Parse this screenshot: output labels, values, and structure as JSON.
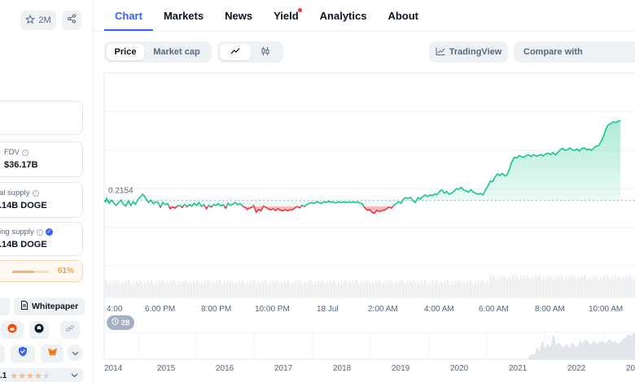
{
  "left": {
    "watch_count": "2M",
    "fdv": {
      "label": "FDV",
      "value": "$36.17B"
    },
    "total_supply": {
      "label": "al supply",
      "value": ".14B DOGE"
    },
    "circulating_supply": {
      "label": "ing supply",
      "value": ".14B DOGE"
    },
    "supply_progress": {
      "percent_label": "61%",
      "fraction": 0.61
    },
    "links": {
      "website_fragment": "e",
      "whitepaper": "Whitepaper"
    },
    "rating": {
      "value_fragment": ".1",
      "stars_filled": 4,
      "stars_total": 5
    }
  },
  "tabs": [
    {
      "label": "Chart",
      "active": true
    },
    {
      "label": "Markets"
    },
    {
      "label": "News"
    },
    {
      "label": "Yield",
      "badge": true
    },
    {
      "label": "Analytics"
    },
    {
      "label": "About"
    }
  ],
  "toolbar": {
    "price": "Price",
    "market_cap": "Market cap",
    "tradingview": "TradingView",
    "compare_placeholder": "Compare with"
  },
  "chart_data": {
    "type": "line",
    "baseline_label": "0.2154",
    "baseline": 0.2154,
    "below_color": "#ea3943",
    "above_color": "#16c784",
    "x_tick_labels": [
      "4:00",
      "6:00 PM",
      "8:00 PM",
      "10:00 PM",
      "18 Jul",
      "2:00 AM",
      "4:00 AM",
      "6:00 AM",
      "8:00 AM",
      "10:00 AM"
    ],
    "ylim": [
      0.195,
      0.252
    ],
    "points": [
      [
        0,
        0.2154
      ],
      [
        2,
        0.215
      ],
      [
        3,
        0.216
      ],
      [
        6,
        0.2146
      ],
      [
        9,
        0.2155
      ],
      [
        12,
        0.2146
      ],
      [
        15,
        0.214
      ],
      [
        18,
        0.2148
      ],
      [
        21,
        0.2155
      ],
      [
        24,
        0.2142
      ],
      [
        27,
        0.2138
      ],
      [
        30,
        0.2152
      ],
      [
        33,
        0.214
      ],
      [
        36,
        0.215
      ],
      [
        39,
        0.2143
      ],
      [
        42,
        0.2157
      ],
      [
        45,
        0.2165
      ],
      [
        48,
        0.2172
      ],
      [
        52,
        0.216
      ],
      [
        55,
        0.2148
      ],
      [
        58,
        0.2155
      ],
      [
        61,
        0.2145
      ],
      [
        64,
        0.215
      ],
      [
        67,
        0.2148
      ],
      [
        70,
        0.2135
      ],
      [
        73,
        0.2148
      ],
      [
        76,
        0.2142
      ],
      [
        79,
        0.2145
      ],
      [
        82,
        0.213
      ],
      [
        85,
        0.2136
      ],
      [
        88,
        0.2132
      ],
      [
        91,
        0.2138
      ],
      [
        94,
        0.214
      ],
      [
        97,
        0.2134
      ],
      [
        100,
        0.2143
      ],
      [
        103,
        0.2136
      ],
      [
        106,
        0.2142
      ],
      [
        109,
        0.2138
      ],
      [
        112,
        0.2146
      ],
      [
        115,
        0.214
      ],
      [
        118,
        0.2148
      ],
      [
        121,
        0.2137
      ],
      [
        124,
        0.2142
      ],
      [
        127,
        0.213
      ],
      [
        130,
        0.214
      ],
      [
        133,
        0.2135
      ],
      [
        136,
        0.2142
      ],
      [
        139,
        0.214
      ],
      [
        142,
        0.2145
      ],
      [
        145,
        0.2138
      ],
      [
        148,
        0.2142
      ],
      [
        151,
        0.2132
      ],
      [
        154,
        0.2146
      ],
      [
        157,
        0.214
      ],
      [
        160,
        0.2144
      ],
      [
        163,
        0.2148
      ],
      [
        166,
        0.2142
      ],
      [
        169,
        0.2145
      ],
      [
        172,
        0.2138
      ],
      [
        175,
        0.2134
      ],
      [
        178,
        0.2128
      ],
      [
        181,
        0.2132
      ],
      [
        184,
        0.2135
      ],
      [
        186,
        0.214
      ],
      [
        189,
        0.212
      ],
      [
        192,
        0.2128
      ],
      [
        195,
        0.2124
      ],
      [
        198,
        0.2138
      ],
      [
        201,
        0.2134
      ],
      [
        204,
        0.213
      ],
      [
        207,
        0.2127
      ],
      [
        210,
        0.213
      ],
      [
        213,
        0.2125
      ],
      [
        216,
        0.2131
      ],
      [
        219,
        0.2126
      ],
      [
        222,
        0.2124
      ],
      [
        225,
        0.2128
      ],
      [
        228,
        0.2124
      ],
      [
        231,
        0.2127
      ],
      [
        234,
        0.2128
      ],
      [
        237,
        0.2132
      ],
      [
        240,
        0.2137
      ],
      [
        243,
        0.2133
      ],
      [
        246,
        0.214
      ],
      [
        249,
        0.2137
      ],
      [
        252,
        0.2142
      ],
      [
        255,
        0.2146
      ],
      [
        258,
        0.2148
      ],
      [
        261,
        0.2145
      ],
      [
        264,
        0.215
      ],
      [
        267,
        0.2148
      ],
      [
        270,
        0.2146
      ],
      [
        273,
        0.215
      ],
      [
        276,
        0.2148
      ],
      [
        279,
        0.2152
      ],
      [
        282,
        0.2149
      ],
      [
        285,
        0.215
      ],
      [
        288,
        0.2147
      ],
      [
        291,
        0.215
      ],
      [
        294,
        0.2148
      ],
      [
        297,
        0.215
      ],
      [
        300,
        0.2148
      ],
      [
        303,
        0.215
      ],
      [
        306,
        0.2148
      ],
      [
        309,
        0.215
      ],
      [
        312,
        0.2148
      ],
      [
        315,
        0.215
      ],
      [
        318,
        0.2147
      ],
      [
        321,
        0.2144
      ],
      [
        324,
        0.2133
      ],
      [
        327,
        0.2126
      ],
      [
        330,
        0.2128
      ],
      [
        333,
        0.212
      ],
      [
        336,
        0.2117
      ],
      [
        339,
        0.2126
      ],
      [
        342,
        0.2122
      ],
      [
        345,
        0.2125
      ],
      [
        348,
        0.2126
      ],
      [
        351,
        0.213
      ],
      [
        354,
        0.2135
      ],
      [
        357,
        0.2132
      ],
      [
        360,
        0.214
      ],
      [
        363,
        0.2145
      ],
      [
        366,
        0.215
      ],
      [
        369,
        0.2146
      ],
      [
        372,
        0.2158
      ],
      [
        375,
        0.2162
      ],
      [
        378,
        0.216
      ],
      [
        381,
        0.2163
      ],
      [
        384,
        0.2154
      ],
      [
        387,
        0.2148
      ],
      [
        390,
        0.2162
      ],
      [
        393,
        0.2158
      ],
      [
        396,
        0.2165
      ],
      [
        399,
        0.217
      ],
      [
        402,
        0.2165
      ],
      [
        405,
        0.217
      ],
      [
        408,
        0.2168
      ],
      [
        411,
        0.2173
      ],
      [
        414,
        0.217
      ],
      [
        417,
        0.218
      ],
      [
        420,
        0.2184
      ],
      [
        423,
        0.2175
      ],
      [
        426,
        0.218
      ],
      [
        429,
        0.2172
      ],
      [
        432,
        0.2176
      ],
      [
        435,
        0.218
      ],
      [
        438,
        0.2188
      ],
      [
        441,
        0.2186
      ],
      [
        444,
        0.2192
      ],
      [
        447,
        0.2184
      ],
      [
        450,
        0.2182
      ],
      [
        453,
        0.2178
      ],
      [
        456,
        0.2185
      ],
      [
        459,
        0.2178
      ],
      [
        462,
        0.2175
      ],
      [
        465,
        0.2172
      ],
      [
        468,
        0.2174
      ],
      [
        471,
        0.217
      ],
      [
        474,
        0.2185
      ],
      [
        477,
        0.2195
      ],
      [
        480,
        0.221
      ],
      [
        483,
        0.2208
      ],
      [
        486,
        0.2222
      ],
      [
        489,
        0.223
      ],
      [
        492,
        0.2226
      ],
      [
        495,
        0.2232
      ],
      [
        498,
        0.2225
      ],
      [
        501,
        0.2228
      ],
      [
        504,
        0.2245
      ],
      [
        507,
        0.2266
      ],
      [
        510,
        0.2278
      ],
      [
        513,
        0.2276
      ],
      [
        516,
        0.2283
      ],
      [
        519,
        0.228
      ],
      [
        522,
        0.2278
      ],
      [
        525,
        0.2284
      ],
      [
        528,
        0.2285
      ],
      [
        531,
        0.228
      ],
      [
        534,
        0.2286
      ],
      [
        537,
        0.2282
      ],
      [
        540,
        0.2283
      ],
      [
        543,
        0.2286
      ],
      [
        546,
        0.2282
      ],
      [
        549,
        0.2288
      ],
      [
        552,
        0.229
      ],
      [
        555,
        0.2286
      ],
      [
        558,
        0.2292
      ],
      [
        561,
        0.2285
      ],
      [
        564,
        0.2292
      ],
      [
        567,
        0.23
      ],
      [
        570,
        0.2304
      ],
      [
        573,
        0.2298
      ],
      [
        576,
        0.23
      ],
      [
        579,
        0.2305
      ],
      [
        582,
        0.23
      ],
      [
        585,
        0.2298
      ],
      [
        588,
        0.2302
      ],
      [
        591,
        0.2296
      ],
      [
        594,
        0.2304
      ],
      [
        597,
        0.2305
      ],
      [
        600,
        0.23
      ],
      [
        603,
        0.2302
      ],
      [
        606,
        0.2298
      ],
      [
        609,
        0.2305
      ],
      [
        612,
        0.231
      ],
      [
        615,
        0.2312
      ],
      [
        618,
        0.2325
      ],
      [
        621,
        0.234
      ],
      [
        624,
        0.236
      ],
      [
        627,
        0.2372
      ],
      [
        630,
        0.2375
      ],
      [
        633,
        0.238
      ],
      [
        636,
        0.2378
      ],
      [
        639,
        0.2382
      ],
      [
        642,
        0.2384
      ]
    ],
    "x_range": [
      0,
      660
    ],
    "year_labels": [
      "2014",
      "2015",
      "2016",
      "2017",
      "2018",
      "2019",
      "2020",
      "2021",
      "2022",
      "20"
    ],
    "range_badge": "28"
  }
}
